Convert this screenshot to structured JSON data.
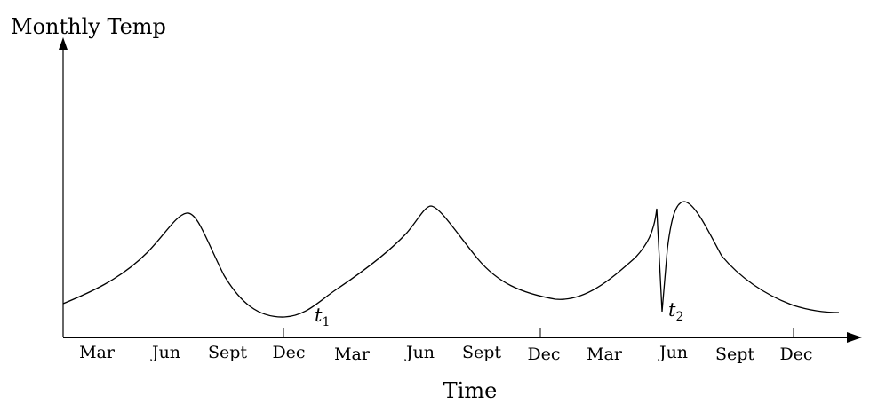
{
  "chart_data": {
    "type": "line",
    "title": "",
    "xlabel": "Time",
    "ylabel": "Monthly Temp",
    "x_ticks": [
      "Mar",
      "Jun",
      "Sept",
      "Dec",
      "Mar",
      "Jun",
      "Sept",
      "Dec",
      "Mar",
      "Jun",
      "Sept",
      "Dec"
    ],
    "x_tick_marks_at": [
      "Dec",
      "Dec",
      "Dec"
    ],
    "y_ticks": [],
    "grid": false,
    "legend": "none",
    "series": [
      {
        "name": "",
        "x": [
          "Jan",
          "Mar",
          "Jun",
          "Sept",
          "Dec",
          "Mar",
          "Jun",
          "Sept",
          "Dec",
          "Mar",
          "May",
          "Jun",
          "Sept",
          "Dec"
        ],
        "y": [
          0.14,
          0.22,
          0.47,
          0.23,
          0.0,
          0.14,
          0.55,
          0.16,
          0.14,
          0.27,
          -0.07,
          0.58,
          0.29,
          0.01
        ]
      }
    ],
    "annotations": [
      {
        "base": "t",
        "sub": "1",
        "near": "Dec (year 1 minimum)"
      },
      {
        "base": "t",
        "sub": "2",
        "near": "Jun (year 3 sharp dip)"
      }
    ]
  }
}
